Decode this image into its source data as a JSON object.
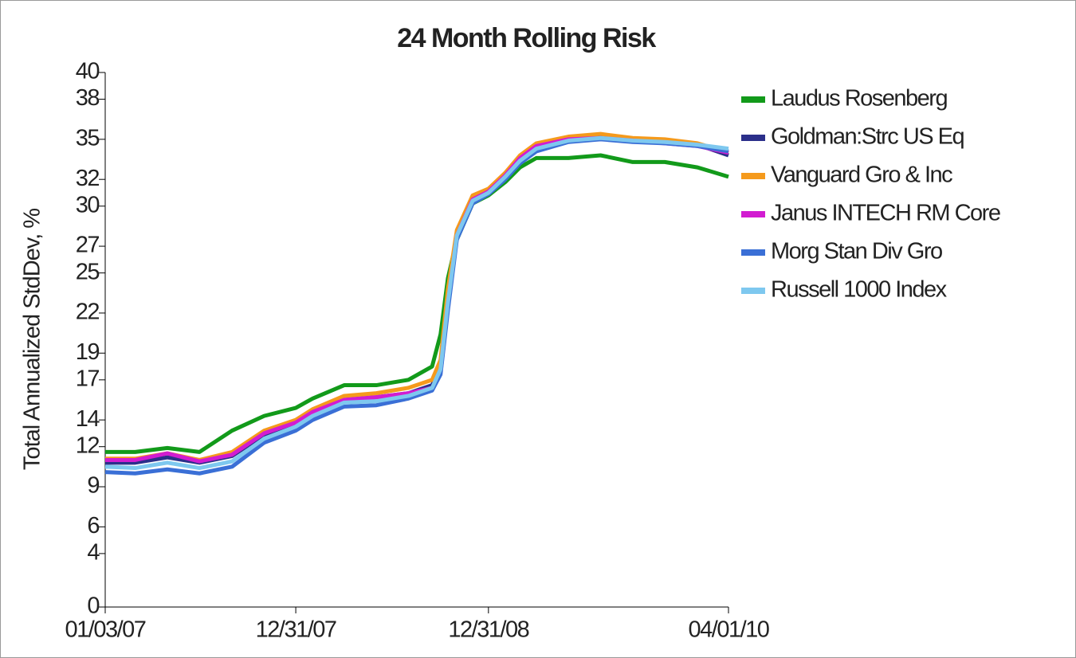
{
  "chart_data": {
    "type": "line",
    "title": "24 Month Rolling Risk",
    "y_label": "Total Annualized StdDev, %",
    "x": [
      "01/03/07",
      "03/01/07",
      "05/01/07",
      "07/01/07",
      "09/01/07",
      "11/01/07",
      "12/31/07",
      "02/01/08",
      "04/01/08",
      "06/01/08",
      "08/01/08",
      "09/15/08",
      "10/01/08",
      "10/15/08",
      "11/01/08",
      "12/01/08",
      "12/31/08",
      "02/01/09",
      "03/01/09",
      "04/01/09",
      "06/01/09",
      "08/01/09",
      "10/01/09",
      "12/01/09",
      "02/01/10",
      "04/01/10"
    ],
    "xlim": [
      "01/03/07",
      "04/01/10"
    ],
    "xticks": [
      "01/03/07",
      "12/31/07",
      "12/31/08",
      "04/01/10"
    ],
    "ylim": [
      0,
      40
    ],
    "yticks": [
      0,
      4,
      6,
      9,
      12,
      14,
      17,
      19,
      22,
      25,
      27,
      30,
      32,
      35,
      38,
      40
    ],
    "grid": false,
    "legend": "right",
    "series": [
      {
        "name": "Laudus Rosenberg",
        "color": "#129a1a",
        "values": [
          11.6,
          11.6,
          11.9,
          11.6,
          13.2,
          14.3,
          14.9,
          15.6,
          16.6,
          16.6,
          17.0,
          18.0,
          20.4,
          24.6,
          27.5,
          30.2,
          30.8,
          31.8,
          32.9,
          33.6,
          33.6,
          33.8,
          33.3,
          33.3,
          32.9,
          32.2
        ]
      },
      {
        "name": "Goldman:Strc US Eq",
        "color": "#2b2f8a",
        "values": [
          10.8,
          10.8,
          11.2,
          10.8,
          11.3,
          12.9,
          13.7,
          14.5,
          15.5,
          15.7,
          16.0,
          16.6,
          18.0,
          23.0,
          27.8,
          30.4,
          31.0,
          32.2,
          33.5,
          34.4,
          35.0,
          35.2,
          35.0,
          34.8,
          34.6,
          33.8
        ]
      },
      {
        "name": "Vanguard Gro & Inc",
        "color": "#f59a1c",
        "values": [
          11.1,
          11.1,
          11.5,
          11.0,
          11.6,
          13.2,
          14.0,
          14.8,
          15.8,
          16.0,
          16.4,
          17.0,
          18.5,
          23.8,
          28.2,
          30.8,
          31.3,
          32.5,
          33.8,
          34.7,
          35.2,
          35.4,
          35.1,
          35.0,
          34.7,
          34.0
        ]
      },
      {
        "name": "Janus INTECH RM Core",
        "color": "#d21cd1",
        "values": [
          11.0,
          11.0,
          11.5,
          10.9,
          11.4,
          13.0,
          13.8,
          14.6,
          15.5,
          15.7,
          16.0,
          16.4,
          17.5,
          22.5,
          27.8,
          30.5,
          31.1,
          32.3,
          33.6,
          34.5,
          35.0,
          35.1,
          34.9,
          34.7,
          34.5,
          34.0
        ]
      },
      {
        "name": "Morg Stan Div Gro",
        "color": "#3a6fd6",
        "values": [
          10.1,
          10.0,
          10.3,
          10.0,
          10.5,
          12.3,
          13.2,
          14.0,
          15.0,
          15.1,
          15.6,
          16.2,
          17.4,
          22.2,
          27.5,
          30.2,
          30.9,
          32.0,
          33.2,
          34.1,
          34.8,
          35.0,
          34.8,
          34.7,
          34.5,
          34.1
        ]
      },
      {
        "name": "Russell 1000 Index",
        "color": "#7ec8ef",
        "values": [
          10.5,
          10.4,
          10.8,
          10.4,
          10.9,
          12.6,
          13.5,
          14.3,
          15.3,
          15.4,
          15.8,
          16.4,
          17.8,
          22.8,
          27.8,
          30.4,
          31.0,
          32.2,
          33.4,
          34.3,
          34.9,
          35.1,
          34.9,
          34.8,
          34.6,
          34.3
        ]
      }
    ]
  }
}
